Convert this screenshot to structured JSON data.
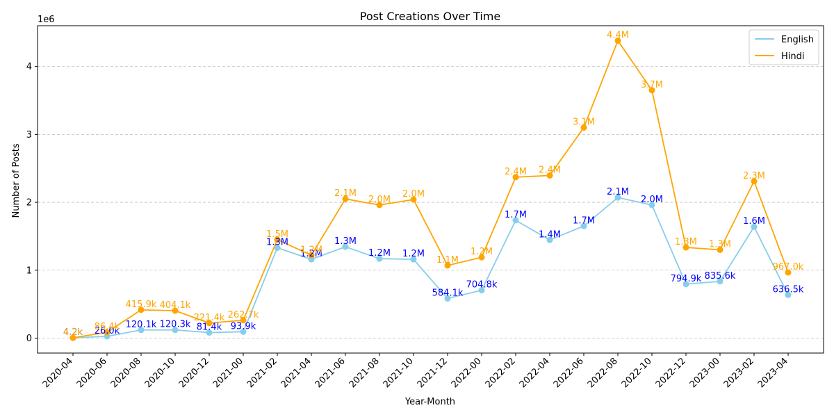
{
  "chart_data": {
    "type": "line",
    "title": "Post Creations Over Time",
    "xlabel": "Year-Month",
    "ylabel": "Number of Posts",
    "y_offset_text": "1e6",
    "ylim": [
      -0.22,
      4.6
    ],
    "yticks": [
      0,
      1,
      2,
      3,
      4
    ],
    "grid": "y-dashed",
    "legend_position": "top-right",
    "categories": [
      "2020-04",
      "2020-06",
      "2020-08",
      "2020-10",
      "2020-12",
      "2021-00",
      "2021-02",
      "2021-04",
      "2021-06",
      "2021-08",
      "2021-10",
      "2021-12",
      "2022-00",
      "2022-02",
      "2022-04",
      "2022-06",
      "2022-08",
      "2022-10",
      "2022-12",
      "2023-00",
      "2023-02",
      "2023-04"
    ],
    "series": [
      {
        "name": "English",
        "color": "#87ceeb",
        "label_color": "#0000ff",
        "values": [
          0.0042,
          0.026,
          0.1201,
          0.1203,
          0.0814,
          0.0939,
          1.33,
          1.16,
          1.345,
          1.17,
          1.16,
          0.5841,
          0.7048,
          1.735,
          1.445,
          1.65,
          2.07,
          1.96,
          0.7949,
          0.8356,
          1.64,
          0.6365
        ],
        "labels": [
          "4.2k",
          "26.0k",
          "120.1k",
          "120.3k",
          "81.4k",
          "93.9k",
          "1.3M",
          "1.2M",
          "1.3M",
          "1.2M",
          "1.2M",
          "584.1k",
          "704.8k",
          "1.7M",
          "1.4M",
          "1.7M",
          "2.1M",
          "2.0M",
          "794.9k",
          "835.6k",
          "1.6M",
          "636.5k"
        ]
      },
      {
        "name": "Hindi",
        "color": "#ffa500",
        "label_color": "#ffa500",
        "values": [
          0.0042,
          0.0864,
          0.4159,
          0.4041,
          0.2214,
          0.2627,
          1.45,
          1.22,
          2.05,
          1.96,
          2.04,
          1.07,
          1.19,
          2.37,
          2.395,
          3.1,
          4.38,
          3.65,
          1.335,
          1.3,
          2.31,
          0.967
        ],
        "labels": [
          "4.2k",
          "86.4k",
          "415.9k",
          "404.1k",
          "221.4k",
          "262.7k",
          "1.5M",
          "1.2M",
          "2.1M",
          "2.0M",
          "2.0M",
          "1.1M",
          "1.2M",
          "2.4M",
          "2.4M",
          "3.1M",
          "4.4M",
          "3.7M",
          "1.3M",
          "1.3M",
          "2.3M",
          "967.0k"
        ]
      }
    ]
  }
}
